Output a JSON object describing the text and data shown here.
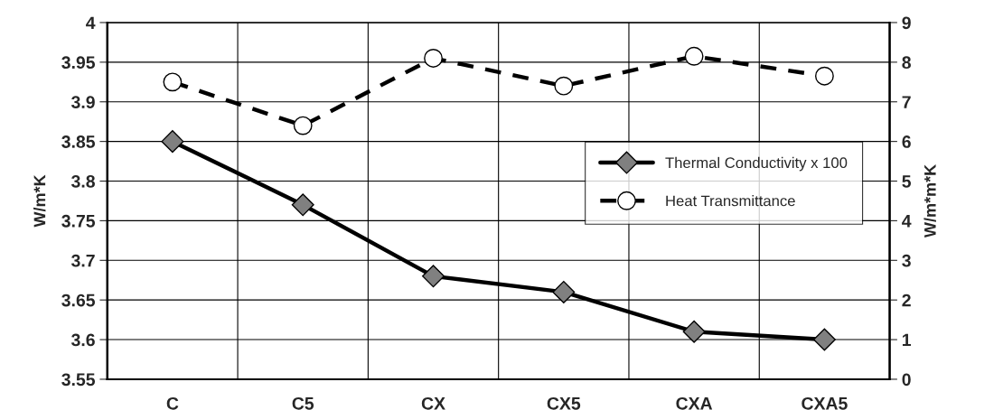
{
  "chart_data": {
    "type": "line",
    "ylabel": "W/m*K",
    "y2label": "W/m*m*K",
    "categories": [
      "C",
      "C5",
      "CX",
      "CX5",
      "CXA",
      "CXA5"
    ],
    "series": [
      {
        "name": "Thermal Conductivity x 100",
        "color": "#000000",
        "marker": "diamond",
        "line_style": "solid",
        "values": [
          3.85,
          3.77,
          3.68,
          3.66,
          3.61,
          3.6
        ]
      },
      {
        "name": "Heat Transmittance",
        "color": "#000000",
        "marker": "circle",
        "line_style": "dashed",
        "axis": "y2",
        "values": [
          7.5,
          6.4,
          8.1,
          7.4,
          8.15,
          7.65
        ]
      }
    ],
    "ylim": [
      3.55,
      4
    ],
    "yticks": [
      3.55,
      3.6,
      3.65,
      3.7,
      3.75,
      3.8,
      3.85,
      3.9,
      3.95,
      4
    ],
    "y2lim": [
      0,
      9
    ],
    "y2ticks": [
      0,
      1,
      2,
      3,
      4,
      5,
      6,
      7,
      8,
      9
    ],
    "grid": true,
    "legend": "right"
  }
}
